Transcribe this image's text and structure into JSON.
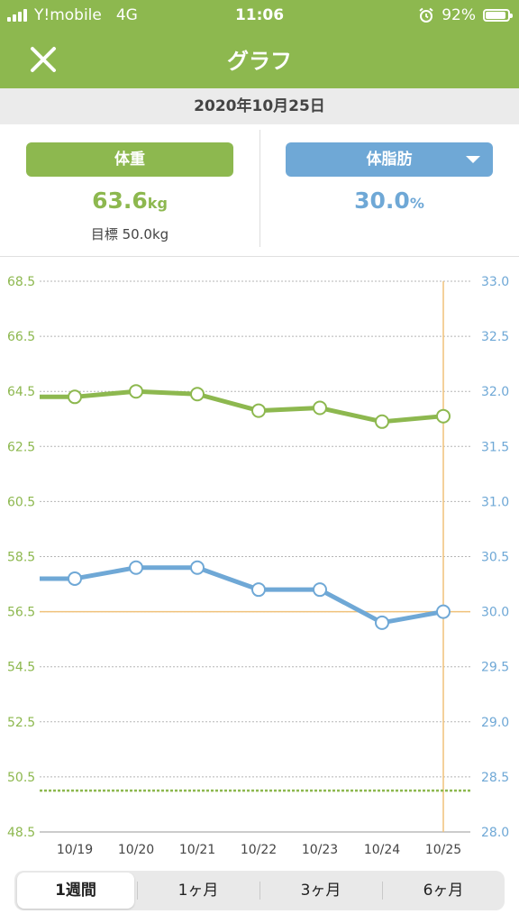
{
  "status": {
    "carrier": "Y!mobile",
    "network": "4G",
    "time": "11:06",
    "battery": "92%",
    "battery_level": 0.92
  },
  "nav": {
    "title": "グラフ",
    "close_icon": "close-icon"
  },
  "date": "2020年10月25日",
  "summary": {
    "weight": {
      "label": "体重",
      "value": "63.6",
      "unit": "kg",
      "goal": "目標 50.0kg"
    },
    "bodyfat": {
      "label": "体脂肪",
      "value": "30.0",
      "unit": "%"
    }
  },
  "colors": {
    "weight": "#8db84f",
    "bodyfat": "#6fa8d6",
    "accent_line": "#f0c27a"
  },
  "chart_data": {
    "type": "line",
    "x": [
      "10/19",
      "10/20",
      "10/21",
      "10/22",
      "10/23",
      "10/24",
      "10/25"
    ],
    "series": [
      {
        "name": "体重",
        "axis": "left",
        "values": [
          64.3,
          64.5,
          64.4,
          63.8,
          63.9,
          63.4,
          63.6
        ]
      },
      {
        "name": "体脂肪",
        "axis": "right",
        "values": [
          30.3,
          30.4,
          30.4,
          30.2,
          30.2,
          29.9,
          30.0
        ]
      }
    ],
    "left_axis": {
      "ticks": [
        "68.5",
        "66.5",
        "64.5",
        "62.5",
        "60.5",
        "58.5",
        "56.5",
        "54.5",
        "52.5",
        "50.5",
        "48.5"
      ],
      "ylim": [
        48.5,
        68.5
      ]
    },
    "right_axis": {
      "ticks": [
        "33.0",
        "32.5",
        "32.0",
        "31.5",
        "31.0",
        "30.5",
        "30.0",
        "29.5",
        "29.0",
        "28.5",
        "28.0"
      ],
      "ylim": [
        28.0,
        33.0
      ]
    },
    "goal_line": 50.0,
    "grid": true
  },
  "periods": [
    "1週間",
    "1ヶ月",
    "3ヶ月",
    "6ヶ月"
  ],
  "selected_period": "1週間"
}
